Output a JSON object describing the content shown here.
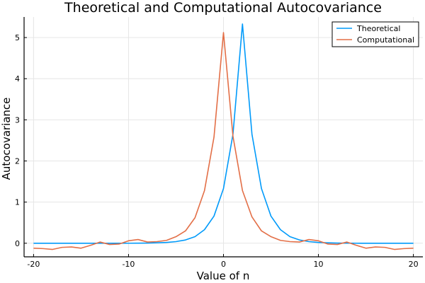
{
  "chart_data": {
    "type": "line",
    "title": "Theoretical and Computational Autocovariance",
    "xlabel": "Value of n",
    "ylabel": "Autocovariance",
    "xlim": [
      -21,
      21
    ],
    "ylim": [
      -0.33,
      5.5
    ],
    "xticks": [
      -20,
      -10,
      0,
      10,
      20
    ],
    "yticks": [
      0,
      1,
      2,
      3,
      4,
      5
    ],
    "grid": true,
    "legend_position": "top-right",
    "x": [
      -20,
      -19,
      -18,
      -17,
      -16,
      -15,
      -14,
      -13,
      -12,
      -11,
      -10,
      -9,
      -8,
      -7,
      -6,
      -5,
      -4,
      -3,
      -2,
      -1,
      0,
      1,
      2,
      3,
      4,
      5,
      6,
      7,
      8,
      9,
      10,
      11,
      12,
      13,
      14,
      15,
      16,
      17,
      18,
      19,
      20
    ],
    "series": [
      {
        "name": "Theoretical",
        "color": "#009AFA",
        "values": [
          0,
          0,
          0,
          0,
          0,
          0,
          0,
          0,
          0,
          0,
          0.001,
          0.002,
          0.005,
          0.01,
          0.02,
          0.04,
          0.08,
          0.16,
          0.33,
          0.66,
          1.33,
          2.65,
          5.33,
          2.65,
          1.33,
          0.66,
          0.33,
          0.16,
          0.08,
          0.04,
          0.02,
          0.01,
          0.005,
          0.002,
          0.001,
          0,
          0,
          0,
          0,
          0,
          0
        ]
      },
      {
        "name": "Computational",
        "color": "#E36F47",
        "values": [
          -0.12,
          -0.13,
          -0.15,
          -0.1,
          -0.09,
          -0.12,
          -0.05,
          0.03,
          -0.03,
          -0.02,
          0.06,
          0.09,
          0.03,
          0.04,
          0.07,
          0.16,
          0.3,
          0.62,
          1.28,
          2.58,
          5.12,
          2.6,
          1.28,
          0.64,
          0.3,
          0.16,
          0.07,
          0.04,
          0.03,
          0.09,
          0.06,
          -0.02,
          -0.03,
          0.03,
          -0.05,
          -0.12,
          -0.09,
          -0.1,
          -0.15,
          -0.13,
          -0.12
        ]
      }
    ]
  }
}
